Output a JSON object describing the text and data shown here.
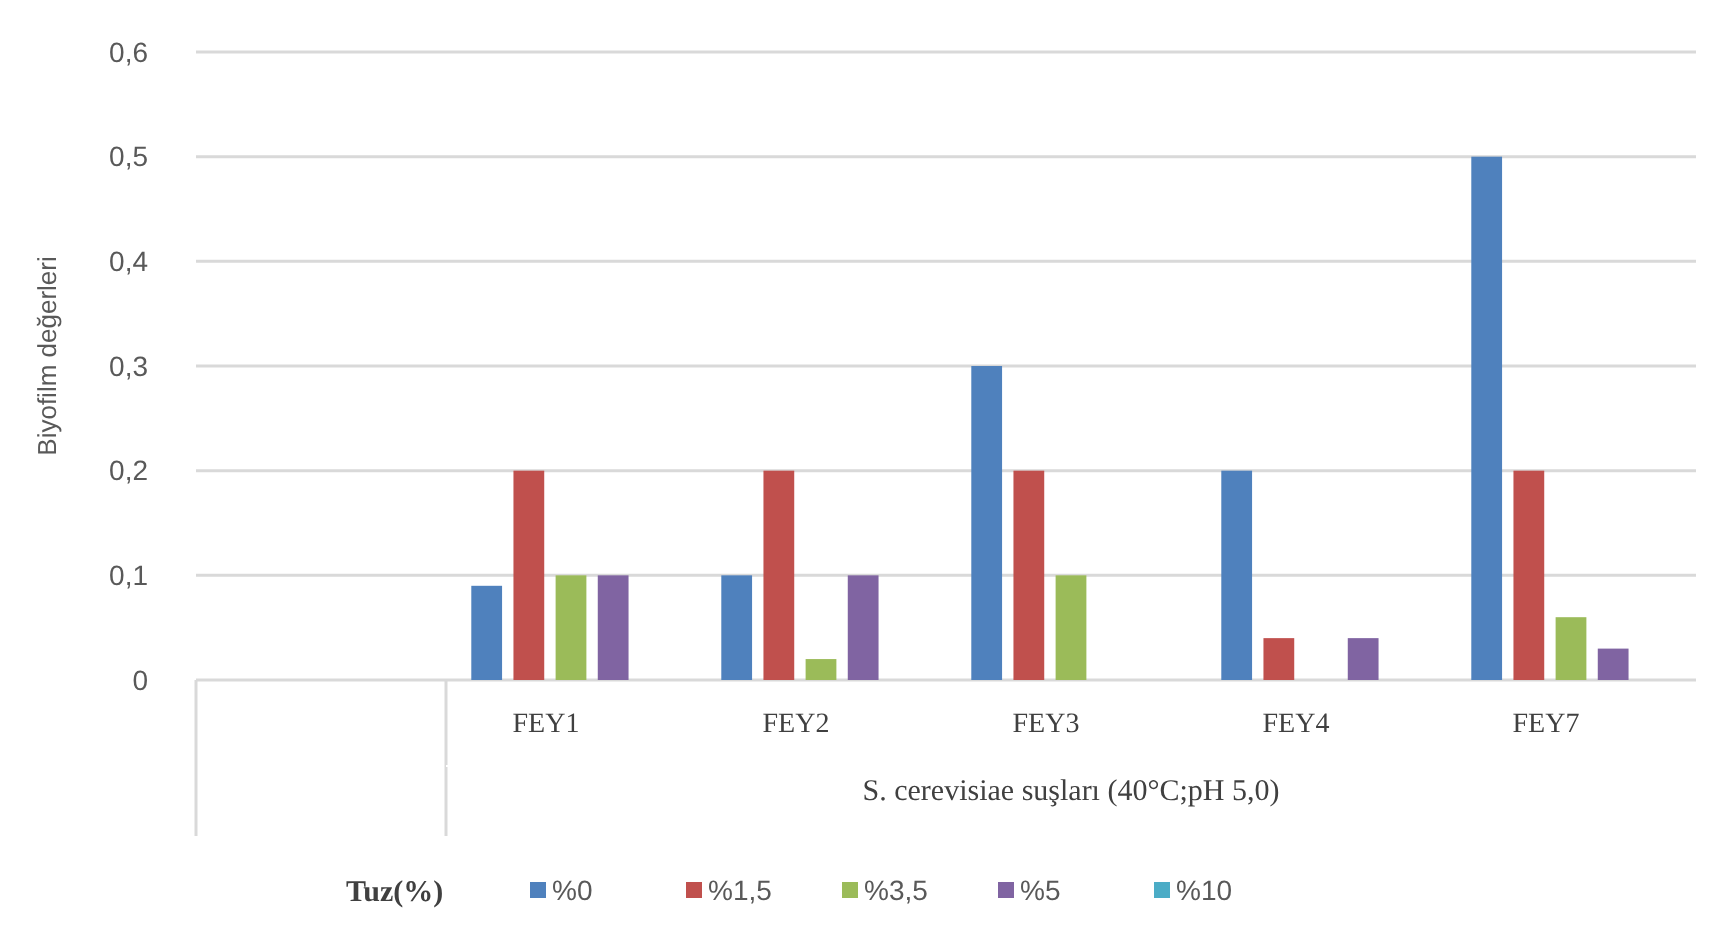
{
  "chart_data": {
    "type": "bar",
    "ylabel": "Biyofilm değerleri",
    "xlabel": "S. cerevisiae suşları   (40°C;pH 5,0)",
    "legend_title": "Tuz(%)",
    "categories": [
      null,
      "FEY1",
      "FEY2",
      "FEY3",
      "FEY4",
      "FEY7"
    ],
    "series": [
      {
        "name": "%0",
        "color": "#4f81bd",
        "values": [
          null,
          0.09,
          0.1,
          0.3,
          0.2,
          0.5
        ]
      },
      {
        "name": "%1,5",
        "color": "#c0504d",
        "values": [
          null,
          0.2,
          0.2,
          0.2,
          0.04,
          0.2
        ]
      },
      {
        "name": "%3,5",
        "color": "#9bbb59",
        "values": [
          null,
          0.1,
          0.02,
          0.1,
          null,
          0.06
        ]
      },
      {
        "name": "%5",
        "color": "#8064a2",
        "values": [
          null,
          0.1,
          0.1,
          null,
          0.04,
          0.03
        ]
      },
      {
        "name": "%10",
        "color": "#4bacc6",
        "values": [
          null,
          null,
          null,
          null,
          null,
          null
        ]
      }
    ],
    "ylim": [
      0,
      0.6
    ],
    "yticks": [
      0,
      {
        "value": 0.1,
        "label": "0,1"
      },
      {
        "value": 0.2,
        "label": "0,2"
      },
      {
        "value": 0.3,
        "label": "0,3"
      },
      {
        "value": 0.4,
        "label": "0,4"
      },
      {
        "value": 0.5,
        "label": "0,5"
      },
      {
        "value": 0.6,
        "label": "0,6"
      }
    ],
    "grid": "y",
    "legend": "bottom"
  }
}
